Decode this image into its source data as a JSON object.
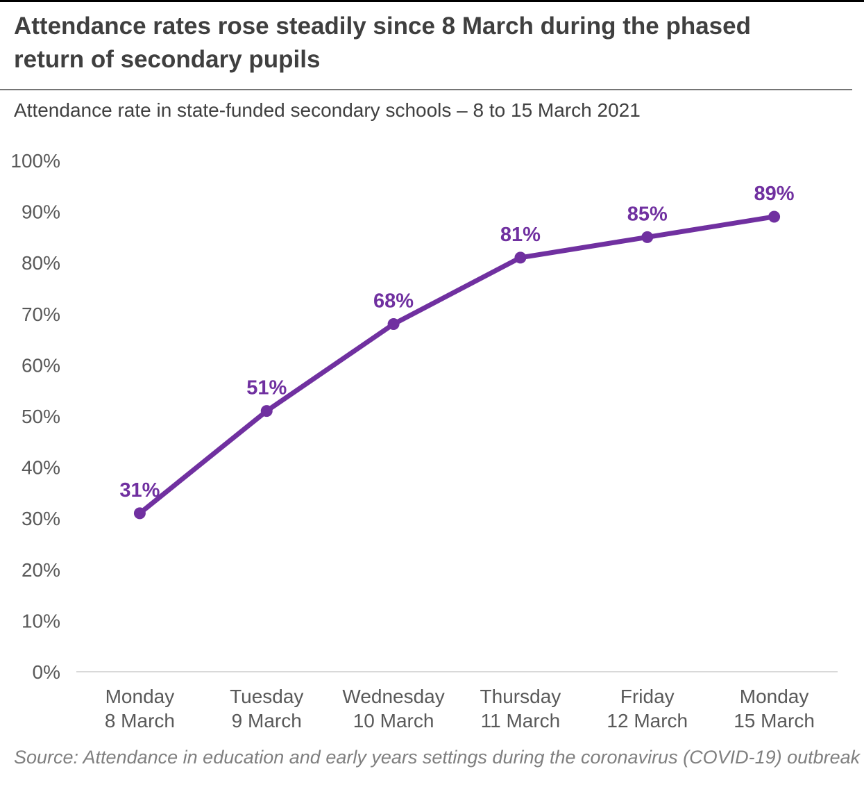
{
  "page": {
    "title": "Attendance rates rose steadily since 8 March during the phased return of secondary pupils",
    "subtitle": "Attendance rate in state-funded secondary schools – 8 to 15 March 2021",
    "source": "Source: Attendance in education and early years settings during the coronavirus (COVID-19) outbreak"
  },
  "colors": {
    "line": "#7030a0",
    "marker": "#7030a0",
    "data_label": "#7030a0",
    "axis_text": "#595959",
    "title_text": "#3f3f3f",
    "subtitle_text": "#404040",
    "baseline": "#d9d9d9",
    "divider": "#757575",
    "source_text": "#7f7f7f",
    "top_bar": "#000000",
    "background": "#ffffff"
  },
  "chart_data": {
    "type": "line",
    "title": "Attendance rates rose steadily since 8 March during the phased return of secondary pupils",
    "subtitle": "Attendance rate in state-funded secondary schools – 8 to 15 March 2021",
    "source": "Source: Attendance in education and early years settings during the coronavirus (COVID-19) outbreak",
    "categories": [
      {
        "day": "Monday",
        "date": "8 March"
      },
      {
        "day": "Tuesday",
        "date": "9 March"
      },
      {
        "day": "Wednesday",
        "date": "10 March"
      },
      {
        "day": "Thursday",
        "date": "11 March"
      },
      {
        "day": "Friday",
        "date": "12 March"
      },
      {
        "day": "Monday",
        "date": "15 March"
      }
    ],
    "values": [
      31,
      51,
      68,
      81,
      85,
      89
    ],
    "data_labels": [
      "31%",
      "51%",
      "68%",
      "81%",
      "85%",
      "89%"
    ],
    "xlabel": "",
    "ylabel": "",
    "ylim": [
      0,
      100
    ],
    "y_tick_step": 10,
    "y_tick_labels": [
      "0%",
      "10%",
      "20%",
      "30%",
      "40%",
      "50%",
      "60%",
      "70%",
      "80%",
      "90%",
      "100%"
    ],
    "grid": false,
    "legend": false,
    "marker": "circle",
    "line_width": 7,
    "marker_radius": 8.5
  }
}
